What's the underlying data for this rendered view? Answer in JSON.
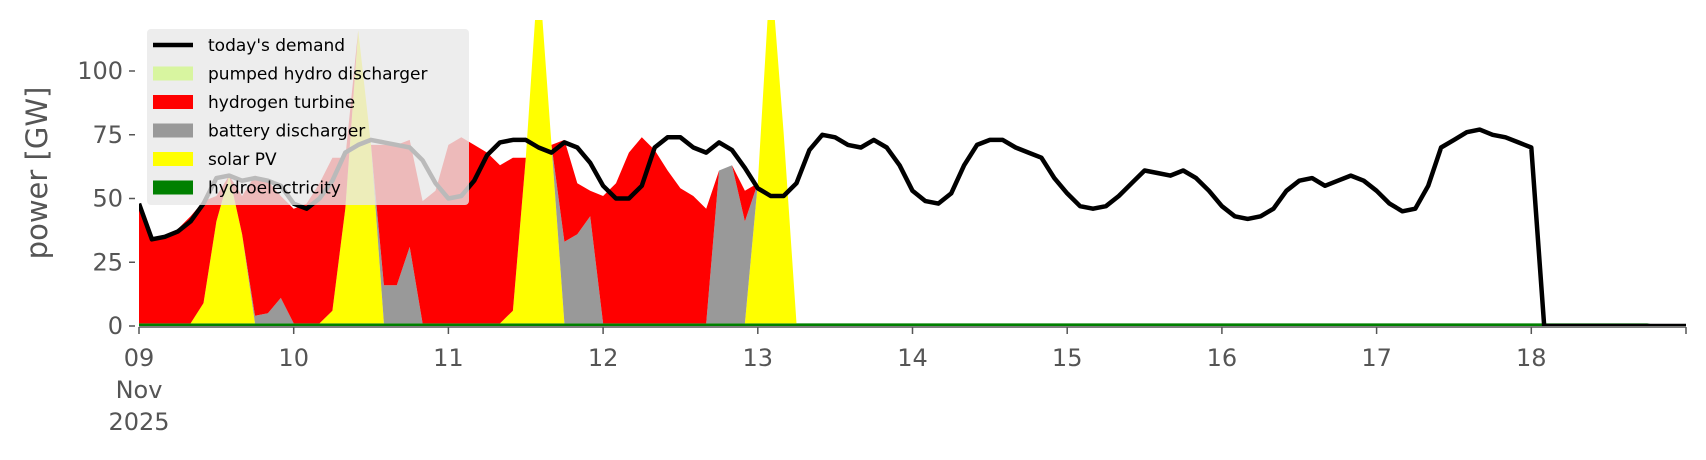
{
  "chart_data": {
    "type": "area",
    "title": "",
    "xlabel": "",
    "ylabel": "power [GW]",
    "ylim": [
      0,
      120
    ],
    "xlim": [
      0,
      240
    ],
    "x_unit": "hours since 09 Nov 2025 00:00",
    "grid": false,
    "legend_position": "top-left",
    "y_ticks": [
      0,
      25,
      50,
      75,
      100
    ],
    "x_ticks": [
      {
        "x": 0,
        "lines": [
          "09",
          "Nov",
          "2025"
        ]
      },
      {
        "x": 24,
        "lines": [
          "10"
        ]
      },
      {
        "x": 48,
        "lines": [
          "11"
        ]
      },
      {
        "x": 72,
        "lines": [
          "12"
        ]
      },
      {
        "x": 96,
        "lines": [
          "13"
        ]
      },
      {
        "x": 120,
        "lines": [
          "14"
        ]
      },
      {
        "x": 144,
        "lines": [
          "15"
        ]
      },
      {
        "x": 168,
        "lines": [
          "16"
        ]
      },
      {
        "x": 192,
        "lines": [
          "17"
        ]
      },
      {
        "x": 216,
        "lines": [
          "18"
        ]
      }
    ],
    "legend": [
      {
        "label": "today's demand",
        "color": "#000000",
        "kind": "line"
      },
      {
        "label": "pumped hydro discharger",
        "color": "#d8f5a0",
        "kind": "patch"
      },
      {
        "label": "hydrogen turbine",
        "color": "#ff0000",
        "kind": "patch"
      },
      {
        "label": "battery discharger",
        "color": "#999999",
        "kind": "patch"
      },
      {
        "label": "solar PV",
        "color": "#ffff00",
        "kind": "patch"
      },
      {
        "label": "hydroelectricity",
        "color": "#008000",
        "kind": "patch"
      }
    ],
    "stack_order": [
      "hydroelectricity",
      "solar PV",
      "battery discharger",
      "hydrogen turbine",
      "pumped hydro discharger"
    ],
    "x": [
      0,
      2,
      4,
      6,
      8,
      10,
      12,
      14,
      16,
      18,
      20,
      22,
      24,
      26,
      28,
      30,
      32,
      34,
      36,
      38,
      40,
      42,
      44,
      46,
      48,
      50,
      52,
      54,
      56,
      58,
      60,
      62,
      64,
      66,
      68,
      70,
      72,
      74,
      76,
      78,
      80,
      82,
      84,
      86,
      88,
      90,
      92,
      94,
      96,
      98,
      100,
      102,
      104,
      106,
      108,
      110,
      112,
      114,
      116,
      118,
      120,
      122,
      124,
      126,
      128,
      130,
      132,
      134,
      136,
      138,
      140,
      142,
      144,
      146,
      148,
      150,
      152,
      154,
      156,
      158,
      160,
      162,
      164,
      166,
      168,
      170,
      172,
      174,
      176,
      178,
      180,
      182,
      184,
      186,
      188,
      190,
      192,
      194,
      196,
      198,
      200,
      202,
      204,
      206,
      208,
      210,
      212,
      214,
      216,
      218,
      220,
      222,
      224,
      226,
      228,
      230,
      232,
      234,
      236,
      238,
      240
    ],
    "series": [
      {
        "name": "hydroelectricity",
        "color": "#008000",
        "values": [
          1,
          1,
          1,
          1,
          1,
          1,
          1,
          1,
          1,
          1,
          1,
          1,
          1,
          1,
          1,
          1,
          1,
          1,
          1,
          1,
          1,
          1,
          1,
          1,
          1,
          1,
          1,
          1,
          1,
          1,
          1,
          1,
          1,
          1,
          1,
          1,
          1,
          1,
          1,
          1,
          1,
          1,
          1,
          1,
          1,
          1,
          1,
          1,
          1,
          1,
          1,
          1,
          1,
          1,
          1,
          1,
          1,
          1,
          1,
          1,
          1,
          1,
          1,
          1,
          1,
          1,
          1,
          1,
          1,
          1,
          1,
          1,
          1,
          1,
          1,
          1,
          1,
          1,
          1,
          1,
          1,
          1,
          1,
          1,
          1,
          1,
          1,
          1,
          1,
          1,
          1,
          1,
          1,
          1,
          1,
          1,
          1,
          1,
          1,
          1,
          1,
          1,
          1,
          1,
          1,
          1,
          1,
          1,
          1,
          1,
          1,
          1,
          1,
          1,
          1,
          1,
          1,
          1,
          0,
          0,
          0
        ]
      },
      {
        "name": "solar PV",
        "color": "#ffff00",
        "values": [
          0,
          0,
          0,
          0,
          0,
          8,
          40,
          58,
          35,
          0,
          0,
          0,
          0,
          0,
          0,
          5,
          45,
          115,
          70,
          0,
          0,
          0,
          0,
          0,
          0,
          0,
          0,
          0,
          0,
          5,
          65,
          140,
          70,
          0,
          0,
          0,
          0,
          0,
          0,
          0,
          0,
          0,
          0,
          0,
          0,
          0,
          0,
          0,
          55,
          140,
          75,
          0,
          0,
          0,
          0,
          0,
          0,
          0,
          0,
          0,
          0,
          0,
          0,
          0,
          0,
          0,
          0,
          0,
          0,
          0,
          0,
          0,
          0,
          0,
          0,
          0,
          0,
          0,
          0,
          0,
          0,
          0,
          0,
          0,
          0,
          0,
          0,
          0,
          0,
          0,
          0,
          0,
          0,
          0,
          0,
          0,
          0,
          0,
          0,
          0,
          0,
          0,
          0,
          0,
          0,
          0,
          0,
          0,
          0,
          0,
          0,
          0,
          0,
          0,
          0,
          0,
          0,
          0,
          0,
          0,
          0
        ]
      },
      {
        "name": "battery discharger",
        "color": "#999999",
        "values": [
          0,
          0,
          0,
          0,
          0,
          0,
          0,
          0,
          0,
          3,
          4,
          10,
          0,
          0,
          0,
          0,
          0,
          0,
          0,
          15,
          15,
          30,
          0,
          0,
          0,
          0,
          0,
          0,
          0,
          0,
          0,
          0,
          0,
          32,
          35,
          42,
          0,
          0,
          0,
          0,
          0,
          0,
          0,
          0,
          0,
          60,
          62,
          40,
          0,
          0,
          0,
          0,
          0,
          0,
          0,
          0,
          0,
          0,
          0,
          0,
          0,
          0,
          0,
          0,
          0,
          0,
          0,
          0,
          0,
          0,
          0,
          0,
          0,
          0,
          0,
          0,
          0,
          0,
          0,
          0,
          0,
          0,
          0,
          0,
          0,
          0,
          0,
          0,
          0,
          0,
          0,
          0,
          0,
          0,
          0,
          0,
          0,
          0,
          0,
          0,
          0,
          0,
          0,
          0,
          0,
          0,
          0,
          0,
          0,
          0,
          0,
          0,
          0,
          0,
          0,
          0,
          0,
          0,
          0,
          0,
          0
        ]
      },
      {
        "name": "hydrogen turbine",
        "color": "#ff0000",
        "values": [
          47,
          33,
          34,
          37,
          42,
          40,
          10,
          0,
          15,
          55,
          52,
          40,
          45,
          47,
          55,
          60,
          20,
          0,
          0,
          55,
          55,
          42,
          48,
          52,
          70,
          73,
          70,
          67,
          62,
          60,
          0,
          0,
          0,
          40,
          20,
          10,
          50,
          55,
          67,
          73,
          68,
          60,
          53,
          50,
          45,
          0,
          0,
          12,
          0,
          0,
          0,
          0,
          0,
          0,
          0,
          0,
          0,
          0,
          0,
          0,
          0,
          0,
          0,
          0,
          0,
          0,
          0,
          0,
          0,
          0,
          0,
          0,
          0,
          0,
          0,
          0,
          0,
          0,
          0,
          0,
          0,
          0,
          0,
          0,
          0,
          0,
          0,
          0,
          0,
          0,
          0,
          0,
          0,
          0,
          0,
          0,
          0,
          0,
          0,
          0,
          0,
          0,
          0,
          0,
          0,
          0,
          0,
          0,
          0,
          0,
          0,
          0,
          0,
          0,
          0,
          0,
          0,
          0,
          0,
          0,
          0
        ]
      },
      {
        "name": "pumped hydro discharger",
        "color": "#d8f5a0",
        "values": [
          0,
          0,
          0,
          0,
          0,
          0,
          0,
          0,
          0,
          0,
          0,
          0,
          0,
          0,
          0,
          0,
          0,
          0,
          0,
          0,
          0,
          0,
          0,
          0,
          0,
          0,
          0,
          0,
          0,
          0,
          0,
          0,
          0,
          0,
          0,
          0,
          0,
          0,
          0,
          0,
          0,
          0,
          0,
          0,
          0,
          0,
          0,
          0,
          0,
          0,
          0,
          0,
          0,
          0,
          0,
          0,
          0,
          0,
          0,
          0,
          0,
          0,
          0,
          0,
          0,
          0,
          0,
          0,
          0,
          0,
          0,
          0,
          0,
          0,
          0,
          0,
          0,
          0,
          0,
          0,
          0,
          0,
          0,
          0,
          0,
          0,
          0,
          0,
          0,
          0,
          0,
          0,
          0,
          0,
          0,
          0,
          0,
          0,
          0,
          0,
          0,
          0,
          0,
          0,
          0,
          0,
          0,
          0,
          0,
          0,
          0,
          0,
          0,
          0,
          0,
          0,
          0,
          0,
          0,
          0,
          0
        ]
      },
      {
        "name": "today's demand",
        "color": "#000000",
        "kind": "line",
        "values": [
          48,
          34,
          35,
          37,
          41,
          48,
          58,
          59,
          57,
          58,
          57,
          55,
          48,
          46,
          50,
          57,
          68,
          71,
          73,
          72,
          71,
          70,
          65,
          56,
          50,
          51,
          57,
          67,
          72,
          73,
          73,
          70,
          68,
          72,
          70,
          64,
          55,
          50,
          50,
          55,
          70,
          74,
          74,
          70,
          68,
          72,
          69,
          62,
          54,
          51,
          51,
          56,
          69,
          75,
          74,
          71,
          70,
          73,
          70,
          63,
          53,
          49,
          48,
          52,
          63,
          71,
          73,
          73,
          70,
          68,
          66,
          58,
          52,
          47,
          46,
          47,
          51,
          56,
          61,
          60,
          59,
          61,
          58,
          53,
          47,
          43,
          42,
          43,
          46,
          53,
          57,
          58,
          55,
          57,
          59,
          57,
          53,
          48,
          45,
          46,
          55,
          70,
          73,
          76,
          77,
          75,
          74,
          72,
          70,
          0,
          0,
          0,
          0,
          0,
          0,
          0,
          0,
          0,
          0,
          0,
          0
        ]
      }
    ]
  }
}
